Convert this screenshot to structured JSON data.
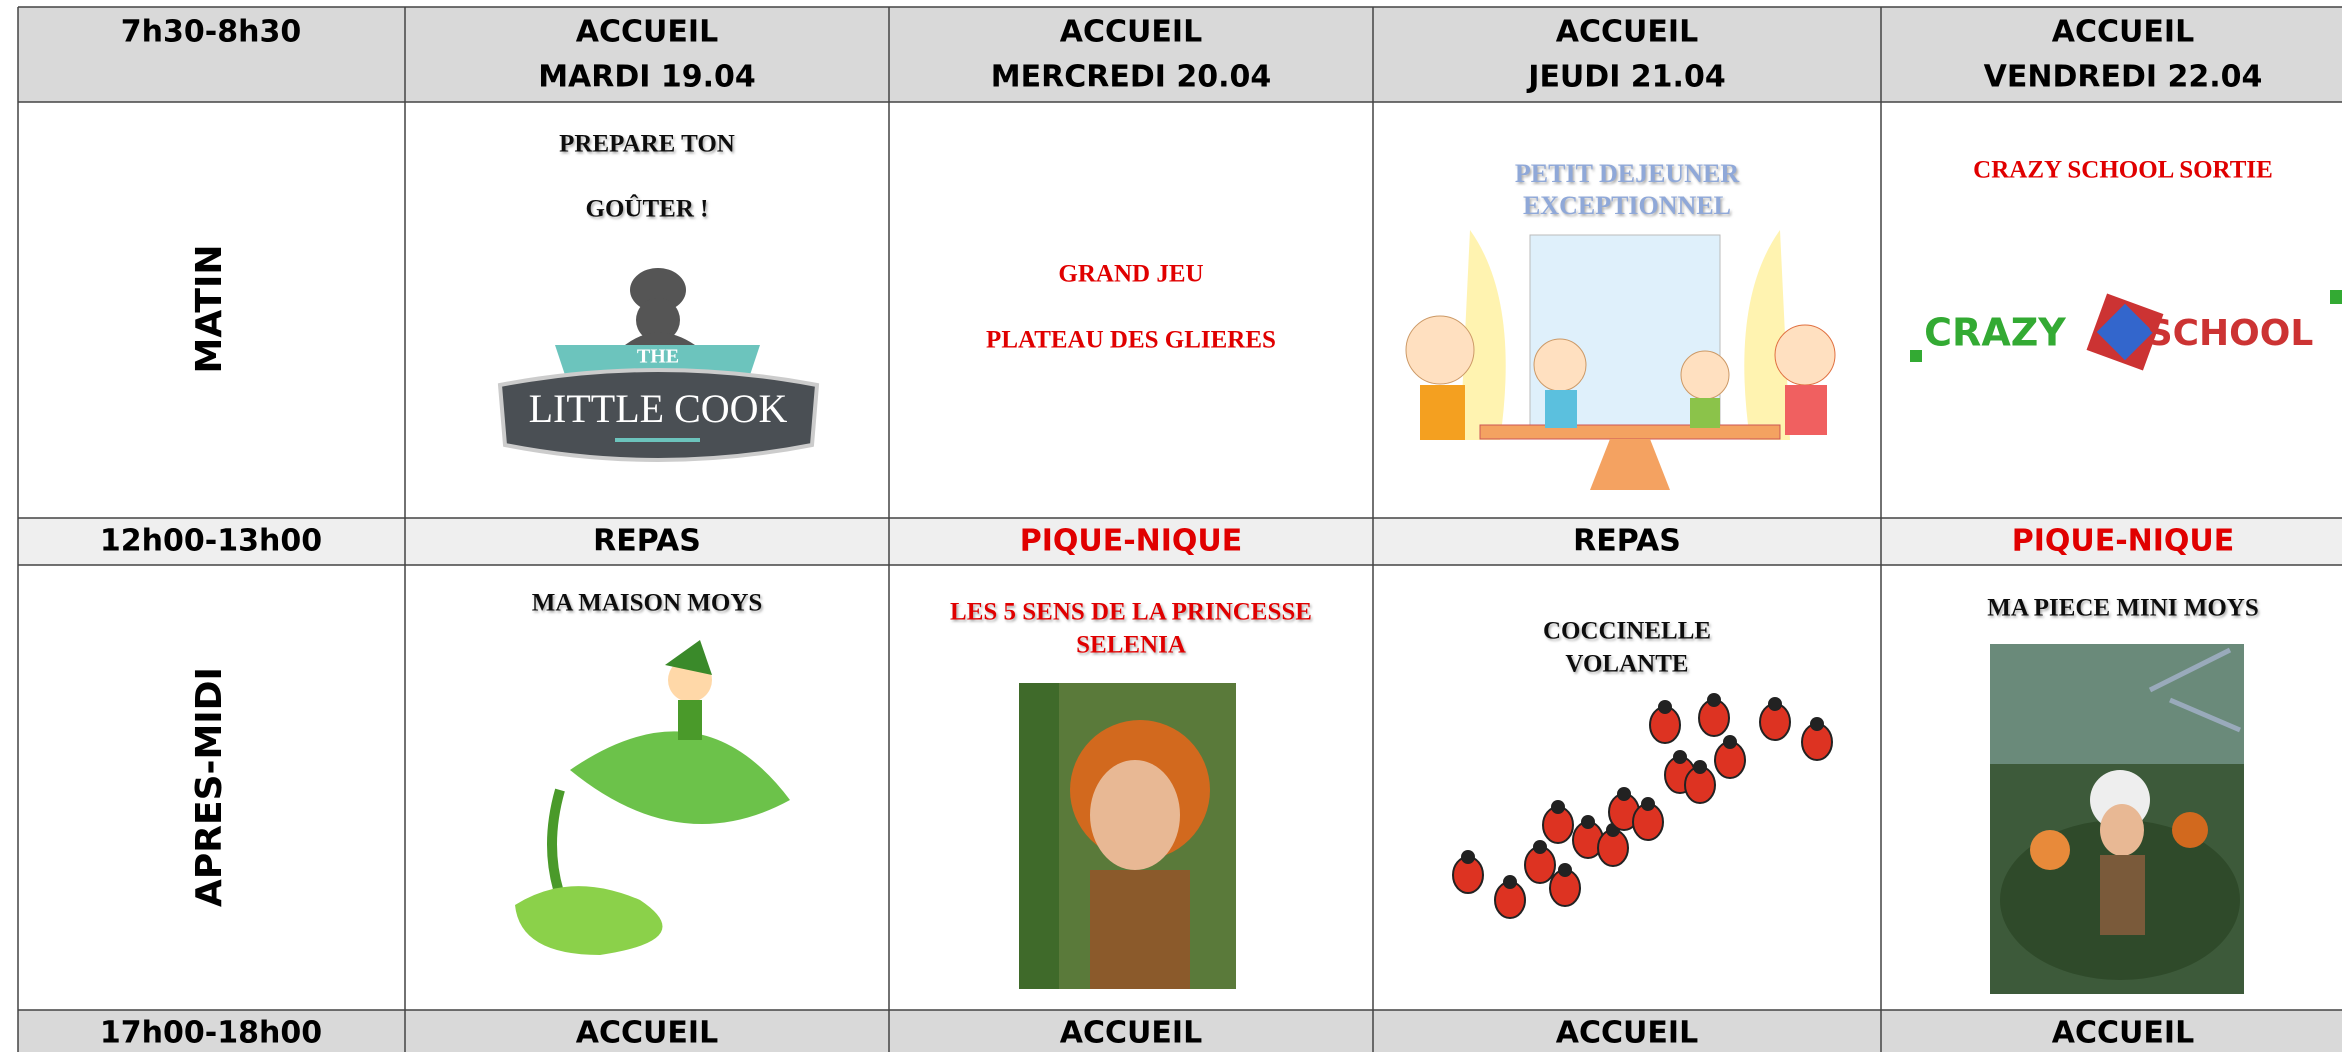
{
  "table": {
    "rows": [
      {
        "label": "7h30-8h30",
        "cells": [
          [
            "ACCUEIL",
            "MARDI 19.04"
          ],
          [
            "ACCUEIL",
            "MERCREDI 20.04"
          ],
          [
            "ACCUEIL",
            "JEUDI 21.04"
          ],
          [
            "ACCUEIL",
            "VENDREDI 22.04"
          ]
        ]
      },
      {
        "label": "MATIN",
        "cells": [
          [
            "PREPARE TON",
            "GOÛTER !"
          ],
          [
            "GRAND JEU",
            "PLATEAU DES GLIERES"
          ],
          [
            "PETIT DEJEUNER",
            "EXCEPTIONNEL"
          ],
          [
            "CRAZY SCHOOL SORTIE"
          ]
        ]
      },
      {
        "label": "12h00-13h00",
        "cells": [
          [
            "REPAS"
          ],
          [
            "PIQUE-NIQUE"
          ],
          [
            "REPAS"
          ],
          [
            "PIQUE-NIQUE"
          ]
        ]
      },
      {
        "label": "APRES-MIDI",
        "cells": [
          [
            "MA MAISON MOYS"
          ],
          [
            "LES 5 SENS DE LA PRINCESSE",
            "SELENIA"
          ],
          [
            "COCCINELLE",
            "VOLANTE"
          ],
          [
            "MA PIECE MINI MOYS"
          ]
        ]
      },
      {
        "label": "17h00-18h00",
        "cells": [
          [
            "ACCUEIL"
          ],
          [
            "ACCUEIL"
          ],
          [
            "ACCUEIL"
          ],
          [
            "ACCUEIL"
          ]
        ]
      }
    ]
  },
  "logos": {
    "little_cook": [
      "THE",
      "LITTLE COOK"
    ],
    "crazy_school": [
      "CRAZY",
      "SCHOOL"
    ]
  }
}
